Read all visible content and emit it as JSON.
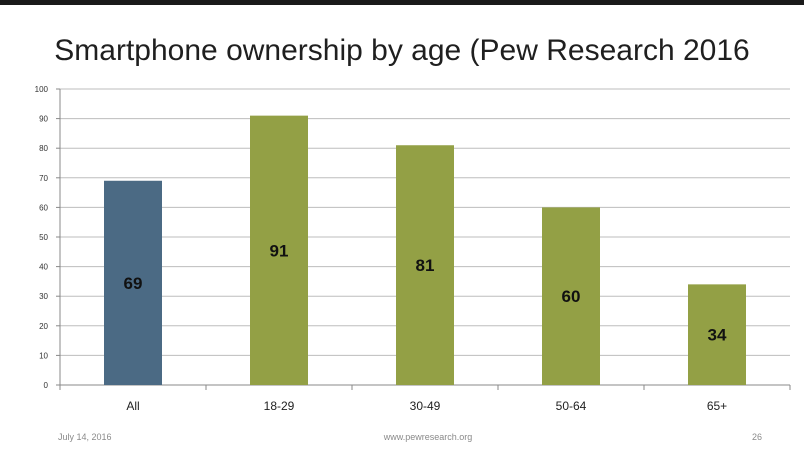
{
  "footer": {
    "date": "July 14, 2016",
    "site": "www.pewresearch.org",
    "page": "26"
  },
  "colors": {
    "all_bar": "#4b6a84",
    "age_bar": "#93a045",
    "grid": "#bdbdbd",
    "text": "#111111"
  },
  "chart_data": {
    "type": "bar",
    "title": "Smartphone ownership by age (Pew Research 2016",
    "categories": [
      "All",
      "18-29",
      "30-49",
      "50-64",
      "65+"
    ],
    "values": [
      69,
      91,
      81,
      60,
      34
    ],
    "ylim": [
      0,
      100
    ],
    "yticks": [
      0,
      10,
      20,
      30,
      40,
      50,
      60,
      70,
      80,
      90,
      100
    ],
    "xlabel": "",
    "ylabel": "",
    "grid": true,
    "legend": "none",
    "data_labels": [
      "69",
      "91",
      "81",
      "60",
      "34"
    ]
  }
}
